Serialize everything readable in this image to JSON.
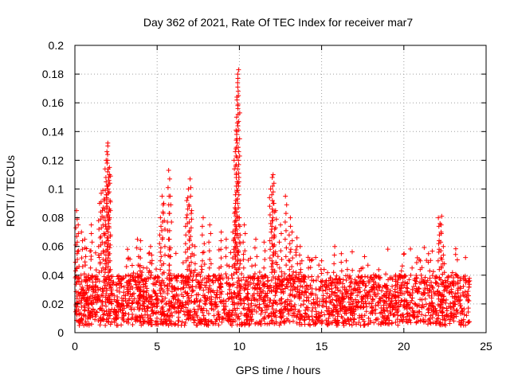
{
  "chart_data": {
    "type": "scatter",
    "title": "Day 362 of 2021, Rate Of TEC Index for receiver mar7",
    "xlabel": "GPS time / hours",
    "ylabel": "ROTI / TECUs",
    "xlim": [
      0,
      25
    ],
    "ylim": [
      0,
      0.2
    ],
    "xticks": [
      "0",
      "5",
      "10",
      "15",
      "20",
      "25"
    ],
    "yticks": [
      "0",
      "0.02",
      "0.04",
      "0.06",
      "0.08",
      "0.1",
      "0.12",
      "0.14",
      "0.16",
      "0.18",
      "0.2"
    ],
    "xtick_values": [
      0,
      5,
      10,
      15,
      20,
      25
    ],
    "ytick_values": [
      0,
      0.02,
      0.04,
      0.06,
      0.08,
      0.1,
      0.12,
      0.14,
      0.16,
      0.18,
      0.2
    ],
    "grid": true,
    "marker": "+",
    "color": "#ff0000",
    "x_data_range": [
      0,
      24
    ],
    "baseline_band": [
      0.005,
      0.04
    ],
    "series": [
      {
        "name": "ROTI",
        "x": [
          0.1,
          0.2,
          0.4,
          0.6,
          1.0,
          1.5,
          1.6,
          1.7,
          1.8,
          1.9,
          1.9,
          2.0,
          2.0,
          2.1,
          2.1,
          3.2,
          3.8,
          4.0,
          4.5,
          4.6,
          5.2,
          5.3,
          5.4,
          5.7,
          5.8,
          6.8,
          6.9,
          7.0,
          7.1,
          7.3,
          7.8,
          8.2,
          8.9,
          9.2,
          9.6,
          9.7,
          9.75,
          9.8,
          9.85,
          9.9,
          9.95,
          10.0,
          10.3,
          11.0,
          11.5,
          11.9,
          12.0,
          12.05,
          12.1,
          12.2,
          12.5,
          12.8,
          13.1,
          13.2,
          13.5,
          13.7,
          13.8,
          14.2,
          15.0,
          15.8,
          16.2,
          16.5,
          17.5,
          19.5,
          20.5,
          21.0,
          21.5,
          22.1,
          22.2,
          22.3,
          22.4,
          23.2
        ],
        "y": [
          0.085,
          0.075,
          0.07,
          0.065,
          0.075,
          0.09,
          0.097,
          0.099,
          0.092,
          0.105,
          0.12,
          0.13,
          0.132,
          0.11,
          0.115,
          0.058,
          0.065,
          0.064,
          0.055,
          0.06,
          0.08,
          0.095,
          0.09,
          0.113,
          0.095,
          0.092,
          0.1,
          0.107,
          0.085,
          0.06,
          0.08,
          0.075,
          0.07,
          0.065,
          0.07,
          0.083,
          0.126,
          0.141,
          0.164,
          0.18,
          0.183,
          0.08,
          0.075,
          0.065,
          0.063,
          0.1,
          0.108,
          0.11,
          0.09,
          0.085,
          0.075,
          0.095,
          0.08,
          0.07,
          0.066,
          0.06,
          0.05,
          0.045,
          0.05,
          0.06,
          0.055,
          0.05,
          0.045,
          0.04,
          0.045,
          0.05,
          0.055,
          0.08,
          0.076,
          0.081,
          0.06,
          0.04
        ]
      }
    ]
  }
}
